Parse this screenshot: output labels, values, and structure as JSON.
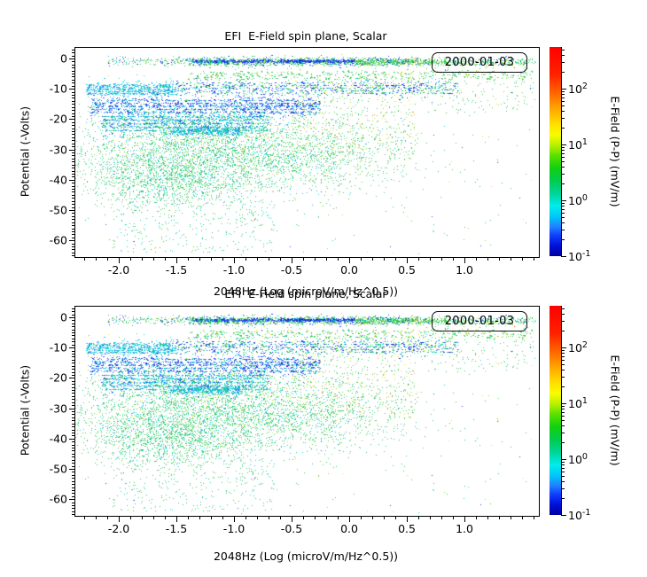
{
  "chart_data": {
    "type": "scatter",
    "title": "EFI  E-Field spin plane, Scalar",
    "xlabel": "2048Hz (Log (microV/m/Hz^0.5))",
    "ylabel": "Potential (-Volts)",
    "legend_label": "2000-01-03",
    "panels": 2,
    "xlim": [
      -2.377,
      1.646
    ],
    "ylim": [
      -65.5,
      3.5
    ],
    "xticks": {
      "majors": [
        -2.0,
        -1.5,
        -1.0,
        -0.5,
        0.0,
        0.5,
        1.0
      ],
      "labels": [
        "-2.0",
        "-1.5",
        "-1.0",
        "-0.5",
        "0.0",
        "0.5",
        "1.0"
      ],
      "minor_step": 0.1,
      "minor_start": -2.3,
      "minor_end": 1.6
    },
    "yticks": {
      "majors": [
        0,
        -10,
        -20,
        -30,
        -40,
        -50,
        -60
      ],
      "labels": [
        "0",
        "-10",
        "-20",
        "-30",
        "-40",
        "-50",
        "-60"
      ],
      "minor_step": 1,
      "minor_start": 3,
      "minor_end": -65
    },
    "colorbar": {
      "label": "E-Field (P-P) (mV/m)",
      "scale": "log",
      "vmin": 0.1,
      "vmax": 560,
      "major_exps": [
        2,
        1,
        0,
        -1
      ],
      "gradient": [
        [
          0.0,
          "#ff0000"
        ],
        [
          0.13,
          "#ff2000"
        ],
        [
          0.22,
          "#ff6600"
        ],
        [
          0.3,
          "#ffaa00"
        ],
        [
          0.37,
          "#ffe000"
        ],
        [
          0.42,
          "#f8fc00"
        ],
        [
          0.47,
          "#b8f000"
        ],
        [
          0.52,
          "#58e000"
        ],
        [
          0.58,
          "#10d010"
        ],
        [
          0.64,
          "#00cc50"
        ],
        [
          0.7,
          "#00d498"
        ],
        [
          0.76,
          "#00ecec"
        ],
        [
          0.81,
          "#00c8f8"
        ],
        [
          0.86,
          "#2080ff"
        ],
        [
          0.9,
          "#1040ff"
        ],
        [
          0.95,
          "#0010d8"
        ],
        [
          1.0,
          "#0000a0"
        ]
      ]
    },
    "seed": 1337,
    "colors": {
      "navy": "#1428d2",
      "blue": "#2848ec",
      "royal": "#3c6cfa",
      "sky": "#30a8ec",
      "cyan": "#14d2dc",
      "teal": "#2cc892",
      "green": "#30c858",
      "green2": "#54d24c",
      "ygreen": "#a0d830",
      "yellow": "#e8dc3c",
      "orange": "#f8a01c",
      "red": "#f04010"
    },
    "palettes": {
      "topmix": [
        [
          "green",
          34
        ],
        [
          "green2",
          14
        ],
        [
          "blue",
          16
        ],
        [
          "navy",
          7
        ],
        [
          "cyan",
          12
        ],
        [
          "sky",
          4
        ],
        [
          "ygreen",
          6
        ],
        [
          "yellow",
          4
        ],
        [
          "teal",
          3
        ]
      ],
      "bluedense": [
        [
          "navy",
          32
        ],
        [
          "blue",
          40
        ],
        [
          "royal",
          16
        ],
        [
          "cyan",
          7
        ],
        [
          "green",
          5
        ]
      ],
      "greendense": [
        [
          "green",
          48
        ],
        [
          "green2",
          28
        ],
        [
          "ygreen",
          10
        ],
        [
          "cyan",
          6
        ],
        [
          "yellow",
          8
        ]
      ],
      "greensparse": [
        [
          "green",
          46
        ],
        [
          "green2",
          24
        ],
        [
          "teal",
          10
        ],
        [
          "ygreen",
          10
        ],
        [
          "yellow",
          6
        ],
        [
          "cyan",
          4
        ]
      ],
      "cyandense": [
        [
          "cyan",
          52
        ],
        [
          "sky",
          28
        ],
        [
          "royal",
          8
        ],
        [
          "teal",
          12
        ]
      ],
      "bluegreen": [
        [
          "blue",
          22
        ],
        [
          "royal",
          13
        ],
        [
          "green",
          24
        ],
        [
          "cyan",
          20
        ],
        [
          "navy",
          6
        ],
        [
          "teal",
          10
        ],
        [
          "ygreen",
          5
        ]
      ],
      "bluemix": [
        [
          "blue",
          34
        ],
        [
          "royal",
          20
        ],
        [
          "navy",
          14
        ],
        [
          "cyan",
          20
        ],
        [
          "sky",
          6
        ],
        [
          "green",
          6
        ]
      ],
      "cyanmix": [
        [
          "cyan",
          40
        ],
        [
          "sky",
          20
        ],
        [
          "blue",
          14
        ],
        [
          "royal",
          10
        ],
        [
          "teal",
          10
        ],
        [
          "green",
          6
        ]
      ],
      "greenteal": [
        [
          "green",
          28
        ],
        [
          "green2",
          20
        ],
        [
          "teal",
          25
        ],
        [
          "cyan",
          15
        ],
        [
          "ygreen",
          5
        ],
        [
          "yellow",
          3
        ],
        [
          "sky",
          4
        ]
      ],
      "tealgreen": [
        [
          "teal",
          34
        ],
        [
          "green",
          28
        ],
        [
          "green2",
          20
        ],
        [
          "cyan",
          18
        ]
      ],
      "greenyellow": [
        [
          "green",
          42
        ],
        [
          "green2",
          20
        ],
        [
          "ygreen",
          14
        ],
        [
          "yellow",
          16
        ],
        [
          "orange",
          8
        ]
      ],
      "sparseteal": [
        [
          "teal",
          38
        ],
        [
          "green",
          30
        ],
        [
          "cyan",
          20
        ],
        [
          "green2",
          12
        ]
      ],
      "anymix": [
        [
          "green",
          36
        ],
        [
          "cyan",
          18
        ],
        [
          "blue",
          10
        ],
        [
          "yellow",
          12
        ],
        [
          "ygreen",
          10
        ],
        [
          "orange",
          6
        ],
        [
          "teal",
          8
        ],
        [
          "red",
          1
        ]
      ]
    },
    "clusters": [
      {
        "type": "hband",
        "y0": -1.0,
        "ysd": 0.7,
        "x0": -2.1,
        "x1": 1.62,
        "n": 900,
        "pal": "topmix"
      },
      {
        "type": "hband",
        "y0": -1.1,
        "ysd": 0.8,
        "x0": -1.4,
        "x1": 0.6,
        "n": 700,
        "pal": "topmix",
        "streaky": true
      },
      {
        "type": "hband",
        "y0": -1.0,
        "ysd": 0.28,
        "x0": -1.35,
        "x1": 0.05,
        "n": 550,
        "pal": "bluedense",
        "streaky": true
      },
      {
        "type": "hband",
        "y0": -1.3,
        "ysd": 0.5,
        "x0": 0.05,
        "x1": 0.9,
        "n": 320,
        "pal": "greendense"
      },
      {
        "type": "hband",
        "y0": -1.5,
        "ysd": 0.6,
        "x0": 0.9,
        "x1": 1.55,
        "n": 70,
        "pal": "greensparse"
      },
      {
        "type": "hband",
        "y0": -5.6,
        "ysd": 1.0,
        "x0": -1.4,
        "x1": 1.55,
        "n": 420,
        "pal": "greensparse",
        "streaky": true
      },
      {
        "type": "hband",
        "y0": -10.2,
        "ysd": 1.3,
        "x0": -2.28,
        "x1": -1.5,
        "n": 620,
        "pal": "cyandense",
        "streaky": true
      },
      {
        "type": "hband",
        "y0": -9.8,
        "ysd": 1.5,
        "x0": -1.5,
        "x1": 0.95,
        "n": 850,
        "pal": "bluegreen",
        "streaky": true
      },
      {
        "type": "hband",
        "y0": -15.8,
        "ysd": 1.8,
        "x0": -2.25,
        "x1": -0.25,
        "n": 1350,
        "pal": "bluemix",
        "streaky": true
      },
      {
        "type": "hband",
        "y0": -21.5,
        "ysd": 2.1,
        "x0": -2.15,
        "x1": -0.7,
        "n": 1250,
        "pal": "cyanmix",
        "streaky": true
      },
      {
        "type": "blob",
        "cx": -1.1,
        "cy": -31,
        "sx": 0.72,
        "sy": 7.2,
        "n": 3900,
        "pal": "greenteal"
      },
      {
        "type": "blob",
        "cx": -1.6,
        "cy": -40,
        "sx": 0.33,
        "sy": 4.5,
        "n": 850,
        "pal": "tealgreen"
      },
      {
        "type": "hband",
        "y0": -24.2,
        "ysd": 0.8,
        "x0": -1.55,
        "x1": -0.95,
        "n": 320,
        "pal": "cyandense",
        "streaky": true
      },
      {
        "type": "rect",
        "x0": -0.5,
        "x1": 0.6,
        "yA": -6,
        "yB": -34,
        "n": 500,
        "pal": "greenyellow"
      },
      {
        "type": "rect",
        "x0": -2.05,
        "x1": -0.65,
        "yA": -44,
        "yB": -64,
        "n": 330,
        "pal": "sparseteal"
      },
      {
        "type": "rect",
        "x0": -2.3,
        "x1": 1.6,
        "yA": -0.5,
        "yB": -65,
        "n": 260,
        "pal": "anymix"
      },
      {
        "type": "rect",
        "x0": 0.6,
        "x1": 1.62,
        "yA": -0.5,
        "yB": -18,
        "n": 170,
        "pal": "greensparse"
      }
    ]
  }
}
